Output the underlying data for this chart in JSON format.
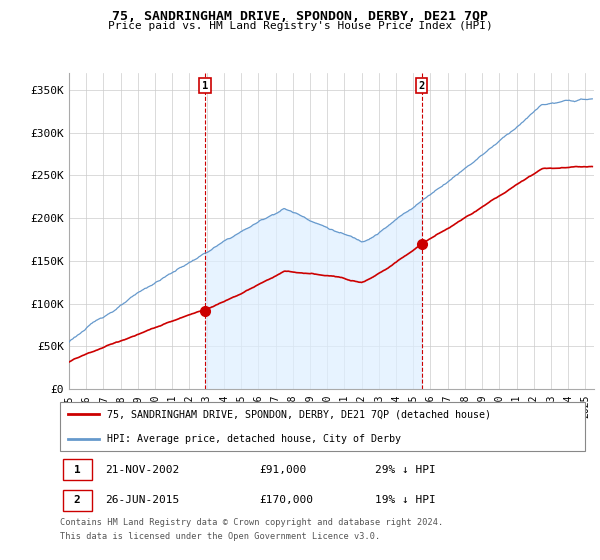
{
  "title": "75, SANDRINGHAM DRIVE, SPONDON, DERBY, DE21 7QP",
  "subtitle": "Price paid vs. HM Land Registry's House Price Index (HPI)",
  "ylabel_ticks": [
    "£0",
    "£50K",
    "£100K",
    "£150K",
    "£200K",
    "£250K",
    "£300K",
    "£350K"
  ],
  "ytick_values": [
    0,
    50000,
    100000,
    150000,
    200000,
    250000,
    300000,
    350000
  ],
  "ylim": [
    0,
    370000
  ],
  "xlim_start": 1995.0,
  "xlim_end": 2025.5,
  "purchase1": {
    "date_num": 2002.896,
    "price": 91000,
    "label": "1",
    "date_str": "21-NOV-2002",
    "pct": "29% ↓ HPI"
  },
  "purchase2": {
    "date_num": 2015.484,
    "price": 170000,
    "label": "2",
    "date_str": "26-JUN-2015",
    "pct": "19% ↓ HPI"
  },
  "legend_line1": "75, SANDRINGHAM DRIVE, SPONDON, DERBY, DE21 7QP (detached house)",
  "legend_line2": "HPI: Average price, detached house, City of Derby",
  "footer1": "Contains HM Land Registry data © Crown copyright and database right 2024.",
  "footer2": "This data is licensed under the Open Government Licence v3.0.",
  "hpi_color": "#6699cc",
  "hpi_fill_color": "#ddeeff",
  "price_color": "#cc0000",
  "vline_color": "#cc0000",
  "background_color": "#ffffff",
  "grid_color": "#cccccc"
}
